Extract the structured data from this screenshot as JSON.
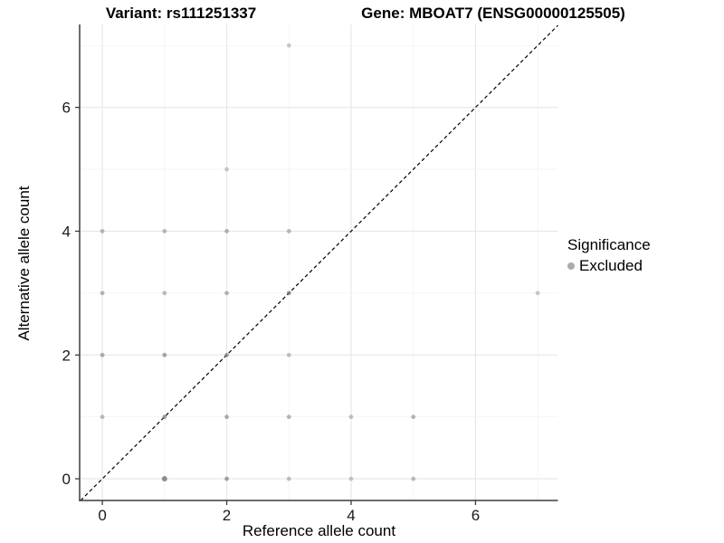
{
  "title": {
    "variant": "Variant: rs111251337",
    "gene": "Gene: MBOAT7 (ENSG00000125505)"
  },
  "axes": {
    "x": {
      "label": "Reference allele count",
      "ticks": [
        0,
        2,
        4,
        6
      ]
    },
    "y": {
      "label": "Alternative allele count",
      "ticks": [
        0,
        2,
        4,
        6
      ]
    }
  },
  "legend": {
    "title": "Significance",
    "items": [
      {
        "label": "Excluded",
        "marker": "gray-dot"
      }
    ]
  },
  "colors": {
    "point": "#7a7a7a",
    "legend_dot": "#ababab",
    "grid_major": "#e6e6e6",
    "grid_minor": "#f2f2f2",
    "axis_line": "#3c3c3c",
    "tick_text": "#1a1a1a",
    "identity_line": "#000000",
    "background": "#ffffff"
  },
  "chart_data": {
    "type": "scatter",
    "title": "Variant: rs111251337  |  Gene: MBOAT7 (ENSG00000125505)",
    "xlabel": "Reference allele count",
    "ylabel": "Alternative allele count",
    "xlim": [
      -0.365,
      7.325
    ],
    "ylim": [
      -0.35,
      7.34
    ],
    "x_ticks": [
      0,
      2,
      4,
      6
    ],
    "y_ticks": [
      0,
      2,
      4,
      6
    ],
    "grid": "on",
    "legend_position": "right-middle",
    "identity_line": {
      "equation": "y = x",
      "style": "dashed",
      "color": "#000000"
    },
    "series": [
      {
        "name": "Excluded",
        "color": "#7a7a7a",
        "points": [
          [
            0,
            1,
            0.5
          ],
          [
            0,
            2,
            0.6
          ],
          [
            0,
            3,
            0.55
          ],
          [
            0,
            4,
            0.5
          ],
          [
            1,
            0,
            0.85,
            3.0
          ],
          [
            1,
            1,
            0.7
          ],
          [
            1,
            2,
            0.65
          ],
          [
            1,
            3,
            0.5
          ],
          [
            1,
            4,
            0.5
          ],
          [
            2,
            0,
            0.7
          ],
          [
            2,
            1,
            0.6
          ],
          [
            2,
            2,
            0.65
          ],
          [
            2,
            3,
            0.55
          ],
          [
            2,
            4,
            0.55
          ],
          [
            2,
            5,
            0.4
          ],
          [
            3,
            0,
            0.45
          ],
          [
            3,
            1,
            0.55
          ],
          [
            3,
            2,
            0.45
          ],
          [
            3,
            3,
            0.75
          ],
          [
            3,
            4,
            0.5
          ],
          [
            3,
            7,
            0.4
          ],
          [
            4,
            0,
            0.4
          ],
          [
            4,
            1,
            0.45
          ],
          [
            5,
            0,
            0.5
          ],
          [
            5,
            1,
            0.55
          ],
          [
            7,
            3,
            0.4
          ]
        ]
      }
    ]
  }
}
